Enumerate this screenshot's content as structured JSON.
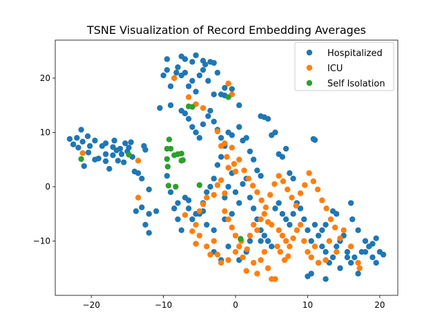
{
  "chart_data": {
    "type": "scatter",
    "title": "TSNE Visualization of Record Embedding Averages",
    "xlabel": "",
    "ylabel": "",
    "xlim": [
      -25,
      22.5
    ],
    "ylim": [
      -20,
      27
    ],
    "xticks": [
      -20,
      -10,
      0,
      10,
      20
    ],
    "yticks": [
      -10,
      0,
      10,
      20
    ],
    "xtick_labels": [
      "−20",
      "−10",
      "0",
      "10",
      "20"
    ],
    "ytick_labels": [
      "−10",
      "0",
      "10",
      "20"
    ],
    "grid": false,
    "legend_position": "top-right",
    "series": [
      {
        "name": "Hospitalized",
        "color": "#1f77b4",
        "points": [
          [
            -23,
            8.8
          ],
          [
            -22.5,
            7.8
          ],
          [
            -22,
            9.0
          ],
          [
            -21.8,
            7.2
          ],
          [
            -21.4,
            10.5
          ],
          [
            -21.2,
            8.3
          ],
          [
            -21,
            3.8
          ],
          [
            -20.4,
            6.3
          ],
          [
            -20.5,
            9.3
          ],
          [
            -20.2,
            7.5
          ],
          [
            -19.5,
            8.5
          ],
          [
            -19.5,
            5.0
          ],
          [
            -19,
            5.2
          ],
          [
            -18.5,
            7.5
          ],
          [
            -18,
            8.0
          ],
          [
            -18,
            6.0
          ],
          [
            -18,
            4.7
          ],
          [
            -17.5,
            3.3
          ],
          [
            -17,
            7.3
          ],
          [
            -17,
            5.8
          ],
          [
            -16.8,
            8.5
          ],
          [
            -16.5,
            6.7
          ],
          [
            -16.3,
            4.8
          ],
          [
            -16,
            7.0
          ],
          [
            -15.8,
            6.0
          ],
          [
            -15.5,
            4.5
          ],
          [
            -15.3,
            8.0
          ],
          [
            -15,
            6.5
          ],
          [
            -14.8,
            7.2
          ],
          [
            -14.5,
            8.2
          ],
          [
            -14.3,
            5.5
          ],
          [
            -14,
            2.8
          ],
          [
            -13.5,
            2.5
          ],
          [
            -13,
            1.5
          ],
          [
            -12.7,
            7.5
          ],
          [
            -12.5,
            6.8
          ],
          [
            -12,
            -0.5
          ],
          [
            -13.8,
            -4.5
          ],
          [
            -13,
            -3.8
          ],
          [
            -12,
            -5
          ],
          [
            -12.5,
            -7
          ],
          [
            -12,
            -8.5
          ],
          [
            -11,
            -4.5
          ],
          [
            -10.5,
            14.5
          ],
          [
            -10,
            20.5
          ],
          [
            -9.5,
            21.5
          ],
          [
            -9,
            18.5
          ],
          [
            -8.5,
            20
          ],
          [
            -8.2,
            21
          ],
          [
            -8,
            22
          ],
          [
            -7.5,
            20.5
          ],
          [
            -7,
            21
          ],
          [
            -6.5,
            18.5
          ],
          [
            -6,
            19.5
          ],
          [
            -5.5,
            17.5
          ],
          [
            -5,
            20.5
          ],
          [
            -4.5,
            21.5
          ],
          [
            -4.2,
            22.5
          ],
          [
            -3.8,
            19.5
          ],
          [
            -3.5,
            23
          ],
          [
            -3,
            22.8
          ],
          [
            -2.5,
            21
          ],
          [
            -2,
            17
          ],
          [
            -1.5,
            18.2
          ],
          [
            -1,
            19
          ],
          [
            -0.5,
            18
          ],
          [
            -9.5,
            23.5
          ],
          [
            -7.5,
            24
          ],
          [
            -7,
            23.5
          ],
          [
            -6,
            23
          ],
          [
            -5.5,
            24.2
          ],
          [
            -4.5,
            23.2
          ],
          [
            -3,
            17
          ],
          [
            -1.5,
            16.8
          ],
          [
            -9,
            15
          ],
          [
            -7.5,
            14
          ],
          [
            -7,
            13.5
          ],
          [
            -6.5,
            12.5
          ],
          [
            -6,
            11
          ],
          [
            -5.5,
            10
          ],
          [
            -5,
            9
          ],
          [
            -4.5,
            11.5
          ],
          [
            -3.8,
            13
          ],
          [
            -3.5,
            14
          ],
          [
            -3,
            12
          ],
          [
            -2.5,
            10.5
          ],
          [
            -2,
            9
          ],
          [
            -1.5,
            7.5
          ],
          [
            -1,
            10
          ],
          [
            -0.5,
            9.5
          ],
          [
            0.5,
            15
          ],
          [
            0.5,
            11
          ],
          [
            1,
            8.5
          ],
          [
            1.5,
            9
          ],
          [
            2,
            6.5
          ],
          [
            2.5,
            5
          ],
          [
            3,
            3
          ],
          [
            3.5,
            2
          ],
          [
            3.5,
            13
          ],
          [
            4,
            12.8
          ],
          [
            4.5,
            12.5
          ],
          [
            5,
            9.5
          ],
          [
            5.5,
            10
          ],
          [
            6,
            6
          ],
          [
            6.5,
            5.5
          ],
          [
            7,
            7
          ],
          [
            7.5,
            2.5
          ],
          [
            8,
            1.5
          ],
          [
            10.8,
            8.8
          ],
          [
            11,
            8.6
          ],
          [
            -9.5,
            2
          ],
          [
            -9,
            -1
          ],
          [
            -8.5,
            -4
          ],
          [
            -8,
            -6
          ],
          [
            -7.5,
            -8
          ],
          [
            -7,
            -2
          ],
          [
            -6.5,
            -2.5
          ],
          [
            -6,
            -6
          ],
          [
            -5.5,
            -10.5
          ],
          [
            -5,
            -5
          ],
          [
            -4.5,
            -3
          ],
          [
            -4,
            -1
          ],
          [
            -3.5,
            0
          ],
          [
            -3,
            1.5
          ],
          [
            -2.5,
            4
          ],
          [
            -2,
            5.5
          ],
          [
            -1.5,
            -2
          ],
          [
            -1,
            0
          ],
          [
            -0.5,
            2.5
          ],
          [
            0,
            -1
          ],
          [
            0.5,
            -3
          ],
          [
            1,
            0.5
          ],
          [
            1.5,
            1.5
          ],
          [
            2,
            -2
          ],
          [
            2.5,
            -4
          ],
          [
            3,
            -6
          ],
          [
            3.5,
            -8
          ],
          [
            4,
            -9
          ],
          [
            4.5,
            -10
          ],
          [
            5,
            -11
          ],
          [
            5.5,
            -4
          ],
          [
            6,
            -3
          ],
          [
            6.5,
            -5
          ],
          [
            7,
            -6
          ],
          [
            7.5,
            -7
          ],
          [
            8,
            -5
          ],
          [
            8.5,
            -3
          ],
          [
            9,
            -4
          ],
          [
            9.5,
            -6
          ],
          [
            10,
            -8
          ],
          [
            10.5,
            -10
          ],
          [
            11,
            -7
          ],
          [
            11.5,
            -9
          ],
          [
            12,
            -11
          ],
          [
            12.5,
            -12
          ],
          [
            13,
            -14
          ],
          [
            13.5,
            -13
          ],
          [
            14,
            -11
          ],
          [
            14.5,
            -10
          ],
          [
            15,
            -9
          ],
          [
            15.5,
            -12
          ],
          [
            16,
            -14
          ],
          [
            16.5,
            -13
          ],
          [
            17,
            -16
          ],
          [
            17.5,
            -12
          ],
          [
            18,
            -10
          ],
          [
            18.5,
            -11
          ],
          [
            19,
            -13
          ],
          [
            19.5,
            -14
          ],
          [
            20,
            -12
          ],
          [
            20.5,
            -12.5
          ],
          [
            19.5,
            -9.5
          ],
          [
            17,
            -8
          ],
          [
            16,
            -3
          ],
          [
            16.2,
            -6
          ],
          [
            14,
            -5
          ],
          [
            13.5,
            -4.5
          ],
          [
            12.5,
            -7
          ],
          [
            12,
            -8
          ],
          [
            11.5,
            -14
          ],
          [
            10.5,
            -16
          ],
          [
            10,
            -16.5
          ],
          [
            12.5,
            -17
          ],
          [
            14.5,
            -15
          ],
          [
            15.5,
            -13
          ],
          [
            18,
            -12
          ],
          [
            19,
            -10.5
          ],
          [
            1.5,
            -12
          ],
          [
            -1,
            -11
          ],
          [
            0.5,
            -13.5
          ],
          [
            2,
            -10
          ],
          [
            3.5,
            -10
          ],
          [
            -2,
            -13.5
          ],
          [
            -3,
            -12
          ],
          [
            -8,
            -3
          ],
          [
            -6.5,
            -4
          ],
          [
            -5.5,
            -5
          ],
          [
            -4.5,
            -4.5
          ],
          [
            -4,
            -7
          ],
          [
            -3,
            -8
          ],
          [
            -1.5,
            -6
          ],
          [
            -0.5,
            -5
          ]
        ]
      },
      {
        "name": "ICU",
        "color": "#ff7f0e",
        "points": [
          [
            -21.2,
            6.2
          ],
          [
            -13.5,
            4.8
          ],
          [
            -13.5,
            -2.0
          ],
          [
            -8.5,
            20.0
          ],
          [
            -6.5,
            16.5
          ],
          [
            -5.5,
            15.2
          ],
          [
            -4.5,
            14.5
          ],
          [
            -2.5,
            10.2
          ],
          [
            -1.5,
            8.0
          ],
          [
            -1,
            19
          ],
          [
            -0.5,
            17.0
          ],
          [
            -1.2,
            5.5
          ],
          [
            -2,
            7.5
          ],
          [
            -0.5,
            7.2
          ],
          [
            -0.2,
            4.2
          ],
          [
            -1,
            3.5
          ],
          [
            0,
            2.8
          ],
          [
            -2,
            1.2
          ],
          [
            -2.5,
            0.3
          ],
          [
            -1.5,
            -1.2
          ],
          [
            -3,
            -1.5
          ],
          [
            -4,
            -2
          ],
          [
            -4.5,
            -3.2
          ],
          [
            -5,
            -4.5
          ],
          [
            -5.5,
            -7
          ],
          [
            -6,
            -8.2
          ],
          [
            -7,
            -5.2
          ],
          [
            -5,
            -9
          ],
          [
            -5.5,
            -10.5
          ],
          [
            -4,
            -11
          ],
          [
            -3,
            -10
          ],
          [
            -2.5,
            -12.5
          ],
          [
            -2,
            -14
          ],
          [
            -3.5,
            -12.5
          ],
          [
            -1,
            -13.5
          ],
          [
            0.5,
            -11
          ],
          [
            0,
            -12
          ],
          [
            1,
            -13
          ],
          [
            1.5,
            -15.5
          ],
          [
            2.5,
            -14
          ],
          [
            3,
            -16
          ],
          [
            3.5,
            -13.5
          ],
          [
            4,
            -12
          ],
          [
            4.5,
            -15
          ],
          [
            5,
            -17
          ],
          [
            5.5,
            -17
          ],
          [
            2,
            -9
          ],
          [
            3,
            -8
          ],
          [
            2.5,
            -7
          ],
          [
            3.5,
            -6
          ],
          [
            4,
            -5
          ],
          [
            4.5,
            -6.5
          ],
          [
            5,
            -7
          ],
          [
            6,
            -8
          ],
          [
            6.5,
            -9
          ],
          [
            7,
            -10
          ],
          [
            7.5,
            -11
          ],
          [
            8,
            -9.5
          ],
          [
            8.5,
            -8
          ],
          [
            9,
            -7
          ],
          [
            9.5,
            -10
          ],
          [
            10,
            -12
          ],
          [
            10.5,
            -13
          ],
          [
            11,
            -11
          ],
          [
            11.5,
            -14
          ],
          [
            12.5,
            -13.5
          ],
          [
            13,
            -10
          ],
          [
            14,
            -12
          ],
          [
            14.5,
            -9.5
          ],
          [
            15,
            -8
          ],
          [
            16,
            -11
          ],
          [
            17,
            -14
          ],
          [
            17.2,
            -15
          ],
          [
            0.5,
            5
          ],
          [
            1.2,
            3
          ],
          [
            1.8,
            1.5
          ],
          [
            2.4,
            0.2
          ],
          [
            3,
            -1
          ],
          [
            3.6,
            -2.5
          ],
          [
            4.2,
            -3.8
          ],
          [
            4.8,
            -1.5
          ],
          [
            5.4,
            0.5
          ],
          [
            6,
            2
          ],
          [
            6.6,
            1
          ],
          [
            7.2,
            -0.5
          ],
          [
            7.8,
            -2
          ],
          [
            8.4,
            -3.5
          ],
          [
            9,
            -1.2
          ],
          [
            9.6,
            0.3
          ],
          [
            10.2,
            2.5
          ],
          [
            10.8,
            1
          ],
          [
            11.4,
            -0.5
          ],
          [
            12,
            -2.5
          ],
          [
            12.6,
            -4
          ],
          [
            13.2,
            -6
          ],
          [
            13.8,
            -7.5
          ],
          [
            -1.5,
            -4.5
          ],
          [
            -1,
            -6
          ],
          [
            -0.5,
            -7.5
          ],
          [
            0,
            -9
          ],
          [
            0.8,
            -10
          ],
          [
            1.6,
            -11.5
          ],
          [
            5.8,
            -11
          ],
          [
            6.2,
            -12
          ],
          [
            6.8,
            -13.5
          ],
          [
            7.3,
            -12.8
          ]
        ]
      },
      {
        "name": "Self Isolation",
        "color": "#2ca02c",
        "points": [
          [
            -21.4,
            5.1
          ],
          [
            -14.8,
            5.9
          ],
          [
            -9.2,
            8.7
          ],
          [
            -9.5,
            7.0
          ],
          [
            -9.0,
            7.0
          ],
          [
            -8.5,
            5.8
          ],
          [
            -8,
            6.0
          ],
          [
            -7.5,
            6.1
          ],
          [
            -7.5,
            4.8
          ],
          [
            -7.3,
            4.9
          ],
          [
            -9.5,
            5.1
          ],
          [
            -9.4,
            3.7
          ],
          [
            -6.5,
            14.8
          ],
          [
            -6.0,
            14.7
          ],
          [
            -9.3,
            0.2
          ],
          [
            -8.3,
            0.0
          ],
          [
            -5.0,
            0.3
          ],
          [
            -1,
            16.5
          ],
          [
            0.7,
            -9.6
          ]
        ]
      }
    ]
  }
}
